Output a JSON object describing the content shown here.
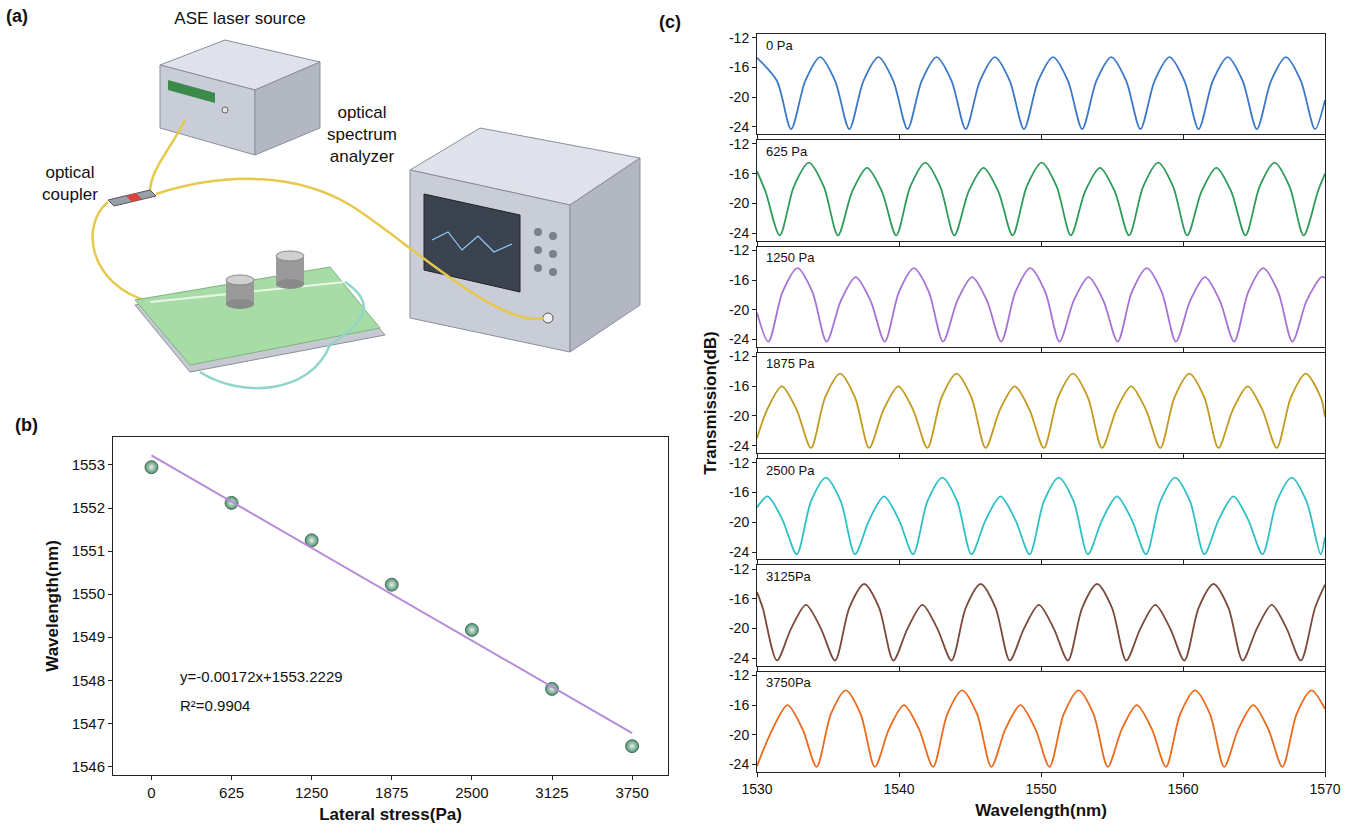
{
  "diagram": {
    "panel": "(a)",
    "source": "ASE laser source",
    "coupler": "optical coupler",
    "analyzer": "optical spectrum analyzer"
  },
  "chart_data": [
    {
      "panel": "(b)",
      "type": "scatter",
      "x_label": "Lateral stress(Pa)",
      "y_label": "Wavelength(nm)",
      "xlim": [
        -300,
        4030
      ],
      "ylim": [
        1545.8,
        1553.65
      ],
      "xticks": [
        0,
        625,
        1250,
        1875,
        2500,
        3125,
        3750
      ],
      "yticks": [
        1546,
        1547,
        1548,
        1549,
        1550,
        1551,
        1552,
        1553
      ],
      "annotations": [
        "y=-0.00172x+1553.2229",
        "R²=0.9904"
      ],
      "series": [
        {
          "type": "scatter",
          "marker": "circle",
          "color": "#4f8e6e",
          "x": [
            0,
            625,
            1250,
            1875,
            2500,
            3125,
            3750
          ],
          "values": [
            1552.95,
            1552.12,
            1551.25,
            1550.22,
            1549.17,
            1547.8,
            1546.47
          ]
        },
        {
          "type": "line",
          "line_style": "solid",
          "color": "#b88ad9",
          "x": [
            0,
            3750
          ],
          "values": [
            1553.2229,
            1546.7729
          ]
        }
      ]
    },
    {
      "panel": "(c)",
      "type": "line",
      "title": "0 Pa",
      "color": "#3a78c9",
      "tick_labels": "y",
      "xlim": [
        1530,
        1570
      ],
      "ylim": [
        -25,
        -11.5
      ],
      "xticks": [
        1530,
        1540,
        1550,
        1560,
        1570
      ],
      "yticks": [
        -24,
        -20,
        -16,
        -12
      ],
      "x": [
        1530.0,
        1531.4,
        1532.4,
        1533.4,
        1534.45,
        1535.5,
        1536.5,
        1537.5,
        1538.55,
        1539.6,
        1540.6,
        1541.6,
        1542.65,
        1543.7,
        1544.7,
        1545.7,
        1546.75,
        1547.8,
        1548.8,
        1549.8,
        1550.85,
        1551.9,
        1552.9,
        1553.9,
        1554.95,
        1556.0,
        1557.0,
        1558.0,
        1559.05,
        1560.1,
        1561.1,
        1562.1,
        1563.15,
        1564.2,
        1565.2,
        1566.2,
        1567.25,
        1568.3,
        1569.3,
        1570.0
      ],
      "values": [
        -14.7,
        -17.8,
        -24.3,
        -17.8,
        -14.6,
        -17.8,
        -24.3,
        -17.8,
        -14.6,
        -17.8,
        -24.3,
        -17.8,
        -14.6,
        -17.8,
        -24.3,
        -17.8,
        -14.6,
        -17.8,
        -24.3,
        -17.8,
        -14.6,
        -17.8,
        -24.3,
        -17.8,
        -14.6,
        -17.8,
        -24.3,
        -17.8,
        -14.6,
        -17.8,
        -24.3,
        -17.8,
        -14.6,
        -17.8,
        -24.3,
        -17.8,
        -14.6,
        -17.8,
        -24.3,
        -20.4
      ]
    },
    {
      "type": "line",
      "title": "625 Pa",
      "color": "#2e9b5a",
      "tick_labels": "y",
      "xlim": [
        1530,
        1570
      ],
      "ylim": [
        -25,
        -11.5
      ],
      "xticks": [
        1530,
        1540,
        1550,
        1560,
        1570
      ],
      "yticks": [
        -24,
        -20,
        -16,
        -12
      ],
      "x": [
        1530.0,
        1530.6,
        1531.6,
        1532.6,
        1533.65,
        1534.7,
        1535.7,
        1536.7,
        1537.75,
        1538.8,
        1539.8,
        1540.8,
        1541.85,
        1542.9,
        1543.9,
        1544.9,
        1545.95,
        1547.0,
        1548.0,
        1549.0,
        1550.05,
        1551.1,
        1552.1,
        1553.1,
        1554.15,
        1555.2,
        1556.2,
        1557.2,
        1558.25,
        1559.3,
        1560.3,
        1561.3,
        1562.35,
        1563.4,
        1564.4,
        1565.4,
        1566.45,
        1567.5,
        1568.5,
        1569.5,
        1570.0
      ],
      "values": [
        -15.7,
        -18.4,
        -24.3,
        -17.7,
        -14.5,
        -17.7,
        -24.3,
        -18.4,
        -15.2,
        -18.4,
        -24.3,
        -17.7,
        -14.5,
        -17.7,
        -24.3,
        -18.4,
        -15.2,
        -18.4,
        -24.3,
        -17.7,
        -14.5,
        -17.7,
        -24.3,
        -18.4,
        -15.2,
        -18.4,
        -24.3,
        -17.7,
        -14.5,
        -17.7,
        -24.3,
        -18.4,
        -15.2,
        -18.4,
        -24.3,
        -17.7,
        -14.5,
        -17.7,
        -24.3,
        -18.4,
        -16.0
      ]
    },
    {
      "type": "line",
      "title": "1250 Pa",
      "color": "#a772d6",
      "tick_labels": "y",
      "xlim": [
        1530,
        1570
      ],
      "ylim": [
        -25,
        -11.5
      ],
      "xticks": [
        1530,
        1540,
        1550,
        1560,
        1570
      ],
      "yticks": [
        -24,
        -20,
        -16,
        -12
      ],
      "x": [
        1530.0,
        1530.8,
        1531.8,
        1532.85,
        1533.9,
        1534.9,
        1535.9,
        1536.95,
        1538.0,
        1539.0,
        1540.0,
        1541.05,
        1542.1,
        1543.1,
        1544.1,
        1545.15,
        1546.2,
        1547.2,
        1548.2,
        1549.25,
        1550.3,
        1551.3,
        1552.3,
        1553.35,
        1554.4,
        1555.4,
        1556.4,
        1557.45,
        1558.5,
        1559.5,
        1560.5,
        1561.55,
        1562.6,
        1563.6,
        1564.6,
        1565.65,
        1566.7,
        1567.7,
        1568.7,
        1569.75,
        1570.0
      ],
      "values": [
        -20.4,
        -24.3,
        -17.6,
        -14.4,
        -17.6,
        -24.3,
        -18.8,
        -15.6,
        -18.8,
        -24.3,
        -17.6,
        -14.4,
        -17.6,
        -24.3,
        -18.8,
        -15.6,
        -18.8,
        -24.3,
        -17.6,
        -14.4,
        -17.6,
        -24.3,
        -18.8,
        -15.6,
        -18.8,
        -24.3,
        -17.6,
        -14.4,
        -17.6,
        -24.3,
        -18.8,
        -15.6,
        -18.8,
        -24.3,
        -17.6,
        -14.4,
        -17.6,
        -24.3,
        -18.8,
        -15.6,
        -15.7
      ]
    },
    {
      "type": "line",
      "title": "1875 Pa",
      "color": "#c29a1c",
      "tick_labels": "y",
      "y_label": "Transmission(dB)",
      "xlim": [
        1530,
        1570
      ],
      "ylim": [
        -25,
        -11.5
      ],
      "xticks": [
        1530,
        1540,
        1550,
        1560,
        1570
      ],
      "yticks": [
        -24,
        -20,
        -16,
        -12
      ],
      "x": [
        1530.0,
        1530.7,
        1531.75,
        1532.8,
        1533.8,
        1534.8,
        1535.85,
        1536.9,
        1537.9,
        1538.9,
        1539.95,
        1541.0,
        1542.0,
        1543.0,
        1544.05,
        1545.1,
        1546.1,
        1547.1,
        1548.15,
        1549.2,
        1550.2,
        1551.2,
        1552.25,
        1553.3,
        1554.3,
        1555.3,
        1556.35,
        1557.4,
        1558.4,
        1559.4,
        1560.45,
        1561.5,
        1562.5,
        1563.5,
        1564.55,
        1565.6,
        1566.6,
        1567.6,
        1568.65,
        1569.7,
        1570.0
      ],
      "values": [
        -23.0,
        -19.2,
        -16.0,
        -19.2,
        -24.3,
        -17.5,
        -14.3,
        -17.5,
        -24.3,
        -19.2,
        -16.0,
        -19.2,
        -24.3,
        -17.5,
        -14.3,
        -17.5,
        -24.3,
        -19.2,
        -16.0,
        -19.2,
        -24.3,
        -17.5,
        -14.3,
        -17.5,
        -24.3,
        -19.2,
        -16.0,
        -19.2,
        -24.3,
        -17.5,
        -14.3,
        -17.5,
        -24.3,
        -19.2,
        -16.0,
        -19.2,
        -24.3,
        -17.5,
        -14.3,
        -17.5,
        -20.1
      ]
    },
    {
      "type": "line",
      "title": "2500 Pa",
      "color": "#2fbfc6",
      "tick_labels": "y",
      "xlim": [
        1530,
        1570
      ],
      "ylim": [
        -25,
        -11.5
      ],
      "xticks": [
        1530,
        1540,
        1550,
        1560,
        1570
      ],
      "yticks": [
        -24,
        -20,
        -16,
        -12
      ],
      "x": [
        1530.0,
        1530.75,
        1531.8,
        1532.8,
        1533.8,
        1534.85,
        1535.9,
        1536.9,
        1537.9,
        1538.95,
        1540.0,
        1541.0,
        1542.0,
        1543.05,
        1544.1,
        1545.1,
        1546.1,
        1547.15,
        1548.2,
        1549.2,
        1550.2,
        1551.25,
        1552.3,
        1553.3,
        1554.3,
        1555.35,
        1556.4,
        1557.4,
        1558.4,
        1559.45,
        1560.5,
        1561.5,
        1562.5,
        1563.55,
        1564.6,
        1565.6,
        1566.6,
        1567.65,
        1568.7,
        1569.7,
        1570.0
      ],
      "values": [
        -18.0,
        -16.5,
        -19.7,
        -24.3,
        -17.2,
        -14.0,
        -17.2,
        -24.3,
        -19.7,
        -16.5,
        -19.7,
        -24.3,
        -17.2,
        -14.0,
        -17.2,
        -24.3,
        -19.7,
        -16.5,
        -19.7,
        -24.3,
        -17.2,
        -14.0,
        -17.2,
        -24.3,
        -19.7,
        -16.5,
        -19.7,
        -24.3,
        -17.2,
        -14.0,
        -17.2,
        -24.3,
        -19.7,
        -16.5,
        -19.7,
        -24.3,
        -17.2,
        -14.0,
        -17.2,
        -24.3,
        -22.0
      ]
    },
    {
      "type": "line",
      "title": "3125Pa",
      "color": "#7b4a3a",
      "tick_labels": "y",
      "xlim": [
        1530,
        1570
      ],
      "ylim": [
        -25,
        -11.5
      ],
      "xticks": [
        1530,
        1540,
        1550,
        1560,
        1570
      ],
      "yticks": [
        -24,
        -20,
        -16,
        -12
      ],
      "x": [
        1530.0,
        1530.4,
        1531.4,
        1532.4,
        1533.45,
        1534.5,
        1535.5,
        1536.5,
        1537.55,
        1538.6,
        1539.6,
        1540.6,
        1541.65,
        1542.7,
        1543.7,
        1544.7,
        1545.75,
        1546.8,
        1547.8,
        1548.8,
        1549.85,
        1550.9,
        1551.9,
        1552.9,
        1553.95,
        1555.0,
        1556.0,
        1557.0,
        1558.05,
        1559.1,
        1560.1,
        1561.1,
        1562.15,
        1563.2,
        1564.2,
        1565.2,
        1566.25,
        1567.3,
        1568.3,
        1569.3,
        1570.0
      ],
      "values": [
        -15.1,
        -17.2,
        -24.3,
        -20.0,
        -16.8,
        -20.0,
        -24.3,
        -17.2,
        -14.0,
        -17.2,
        -24.3,
        -20.0,
        -16.8,
        -20.0,
        -24.3,
        -17.2,
        -14.0,
        -17.2,
        -24.3,
        -20.0,
        -16.8,
        -20.0,
        -24.3,
        -17.2,
        -14.0,
        -17.2,
        -24.3,
        -20.0,
        -16.8,
        -20.0,
        -24.3,
        -17.2,
        -14.0,
        -17.2,
        -24.3,
        -20.0,
        -16.8,
        -20.0,
        -24.3,
        -17.2,
        -14.1
      ]
    },
    {
      "type": "line",
      "title": "3750Pa",
      "color": "#ec6a1c",
      "x_label": "Wavelength(nm)",
      "xlim": [
        1530,
        1570
      ],
      "ylim": [
        -25,
        -11.5
      ],
      "xticks": [
        1530,
        1540,
        1550,
        1560,
        1570
      ],
      "yticks": [
        -24,
        -20,
        -16,
        -12
      ],
      "x": [
        1530.0,
        1531.1,
        1532.15,
        1533.2,
        1534.2,
        1535.2,
        1536.25,
        1537.3,
        1538.3,
        1539.3,
        1540.35,
        1541.4,
        1542.4,
        1543.4,
        1544.45,
        1545.5,
        1546.5,
        1547.5,
        1548.55,
        1549.6,
        1550.6,
        1551.6,
        1552.65,
        1553.7,
        1554.7,
        1555.7,
        1556.75,
        1557.8,
        1558.8,
        1559.8,
        1560.85,
        1561.9,
        1562.9,
        1563.9,
        1564.95,
        1566.0,
        1567.0,
        1568.0,
        1569.05,
        1570.0
      ],
      "values": [
        -24.2,
        -19.2,
        -16.0,
        -19.2,
        -24.3,
        -17.2,
        -14.0,
        -17.2,
        -24.3,
        -19.2,
        -16.0,
        -19.2,
        -24.3,
        -17.2,
        -14.0,
        -17.2,
        -24.3,
        -19.2,
        -16.0,
        -19.2,
        -24.3,
        -17.2,
        -14.0,
        -17.2,
        -24.3,
        -19.2,
        -16.0,
        -19.2,
        -24.3,
        -17.2,
        -14.0,
        -17.2,
        -24.3,
        -19.2,
        -16.0,
        -19.2,
        -24.3,
        -17.2,
        -14.0,
        -16.5
      ]
    }
  ]
}
